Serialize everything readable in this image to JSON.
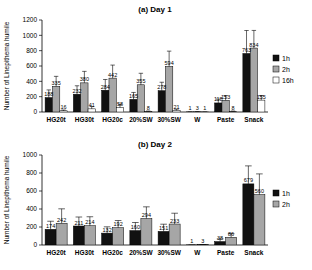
{
  "chart_data": [
    {
      "type": "bar",
      "title": "(a) Day 1",
      "y_label": "Number of Linepithema humile",
      "categories": [
        "HG20t",
        "HG30t",
        "HG20c",
        "20%SW",
        "30%SW",
        "W",
        "Paste",
        "Snack"
      ],
      "series": [
        {
          "name": "1h",
          "color": "#111111",
          "values": [
            188,
            232,
            284,
            165,
            278,
            1,
            118,
            763
          ],
          "errors": [
            100,
            110,
            140,
            90,
            110,
            0,
            50,
            300
          ]
        },
        {
          "name": "2h",
          "color": "#a6a6a6",
          "values": [
            335,
            380,
            442,
            355,
            594,
            3,
            153,
            834
          ],
          "errors": [
            130,
            150,
            170,
            150,
            200,
            2,
            60,
            230
          ]
        },
        {
          "name": "16h",
          "color": "#ffffff",
          "values": [
            16,
            41,
            58,
            8,
            21,
            1,
            8,
            155
          ],
          "errors": [
            10,
            30,
            40,
            5,
            15,
            0,
            5,
            60
          ]
        }
      ],
      "ylim": [
        0,
        1200
      ],
      "yticks": [
        0,
        200,
        400,
        600,
        800,
        1000,
        1200
      ],
      "legend": "upper right",
      "data_labels": true
    },
    {
      "type": "bar",
      "title": "(b) Day 2",
      "y_label": "Number of Linepithema humile",
      "categories": [
        "HG20t",
        "HG30t",
        "HG20c",
        "20%SW",
        "30%SW",
        "W",
        "Paste",
        "Snack"
      ],
      "series": [
        {
          "name": "1h",
          "color": "#111111",
          "values": [
            174,
            211,
            132,
            160,
            151,
            1,
            38,
            679
          ],
          "errors": [
            90,
            100,
            70,
            90,
            80,
            0,
            30,
            200
          ]
        },
        {
          "name": "2h",
          "color": "#a6a6a6",
          "values": [
            242,
            214,
            192,
            294,
            233,
            3,
            86,
            560
          ],
          "errors": [
            160,
            100,
            80,
            130,
            120,
            2,
            40,
            230
          ]
        }
      ],
      "ylim": [
        0,
        1000
      ],
      "yticks": [
        0,
        200,
        400,
        600,
        800,
        1000
      ],
      "legend": "upper right",
      "data_labels": true
    }
  ]
}
